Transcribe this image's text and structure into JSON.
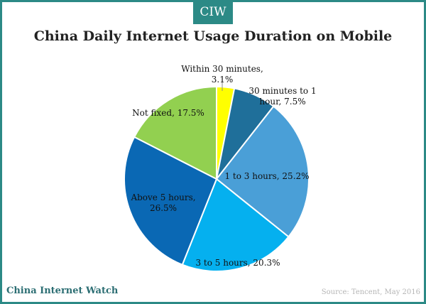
{
  "brand": {
    "badge": "CIW",
    "watermark": "China Internet Watch"
  },
  "source": "Source: Tencent, May 2016",
  "chart_data": {
    "type": "pie",
    "title": "China Daily Internet Usage Duration on Mobile",
    "slices": [
      {
        "label": "Within 30 minutes,",
        "label2": "3.1%",
        "value": 3.1,
        "color": "#ffff00"
      },
      {
        "label": "30 minutes to 1",
        "label2": "hour, 7.5%",
        "value": 7.5,
        "color": "#1f6f9a"
      },
      {
        "label": "1 to 3 hours, 25.2%",
        "label2": "",
        "value": 25.2,
        "color": "#4a9fd7"
      },
      {
        "label": "3 to 5 hours, 20.3%",
        "label2": "",
        "value": 20.3,
        "color": "#05b0ef"
      },
      {
        "label": "Above 5 hours,",
        "label2": "26.5%",
        "value": 26.5,
        "color": "#0a68b4"
      },
      {
        "label": "Not fixed, 17.5%",
        "label2": "",
        "value": 17.5,
        "color": "#92d050"
      }
    ]
  }
}
